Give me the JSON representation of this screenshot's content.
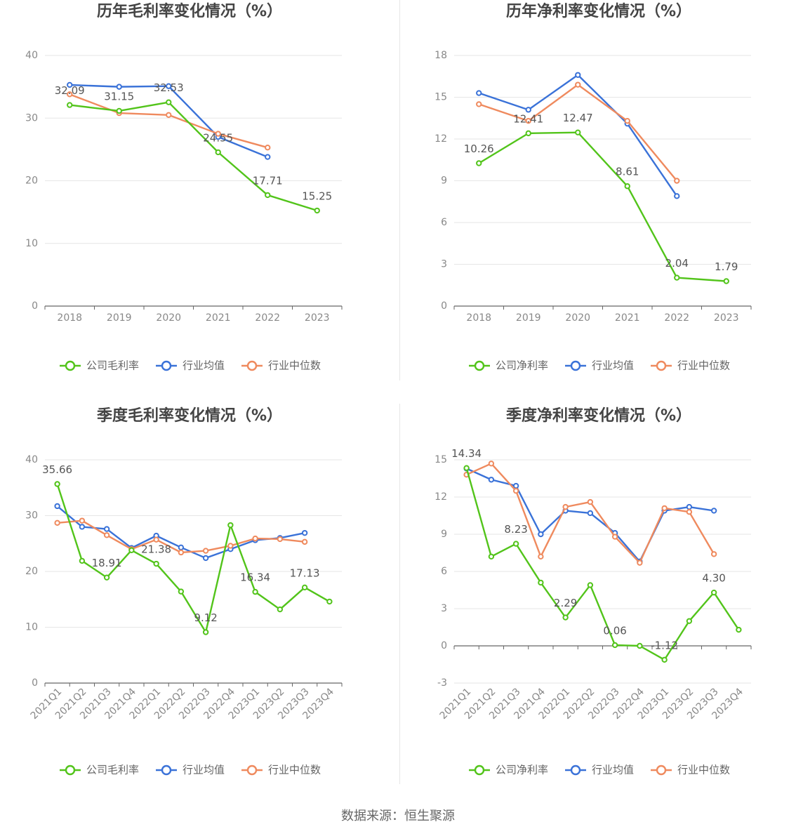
{
  "colors": {
    "company": "#52c41a",
    "average": "#3a72d8",
    "median": "#ef8a5e",
    "axis": "#666666",
    "tick": "#888888",
    "grid": "#e6e6e6",
    "title": "#444444",
    "legend_text": "#666666"
  },
  "footer": "数据来源：恒生聚源",
  "chart_data": [
    {
      "type": "line",
      "title": "历年毛利率变化情况（%）",
      "categories": [
        "2018",
        "2019",
        "2020",
        "2021",
        "2022",
        "2023"
      ],
      "yticks": [
        0,
        10,
        20,
        30,
        40
      ],
      "ylim": [
        0,
        40
      ],
      "grid": true,
      "legend_placement": "bottom",
      "legend": [
        "公司毛利率",
        "行业均值",
        "行业中位数"
      ],
      "series": [
        {
          "name": "公司毛利率",
          "values": [
            32.09,
            31.15,
            32.53,
            24.55,
            17.71,
            15.25
          ],
          "labels": [
            "32.09",
            "31.15",
            "32.53",
            "24.55",
            "17.71",
            "15.25"
          ]
        },
        {
          "name": "行业均值",
          "values": [
            35.3,
            35.0,
            35.1,
            27.0,
            23.8,
            null
          ]
        },
        {
          "name": "行业中位数",
          "values": [
            33.8,
            30.8,
            30.5,
            27.5,
            25.3,
            null
          ]
        }
      ]
    },
    {
      "type": "line",
      "title": "历年净利率变化情况（%）",
      "categories": [
        "2018",
        "2019",
        "2020",
        "2021",
        "2022",
        "2023"
      ],
      "yticks": [
        0,
        3,
        6,
        9,
        12,
        15,
        18
      ],
      "ylim": [
        0,
        18
      ],
      "grid": true,
      "legend_placement": "bottom",
      "legend": [
        "公司净利率",
        "行业均值",
        "行业中位数"
      ],
      "series": [
        {
          "name": "公司净利率",
          "values": [
            10.26,
            12.41,
            12.47,
            8.61,
            2.04,
            1.79
          ],
          "labels": [
            "10.26",
            "12.41",
            "12.47",
            "8.61",
            "2.04",
            "1.79"
          ]
        },
        {
          "name": "行业均值",
          "values": [
            15.3,
            14.1,
            16.6,
            13.1,
            7.9,
            null
          ]
        },
        {
          "name": "行业中位数",
          "values": [
            14.5,
            13.3,
            15.9,
            13.3,
            9.0,
            null
          ]
        }
      ]
    },
    {
      "type": "line",
      "title": "季度毛利率变化情况（%）",
      "categories": [
        "2021Q1",
        "2021Q2",
        "2021Q3",
        "2021Q4",
        "2022Q1",
        "2022Q2",
        "2022Q3",
        "2022Q4",
        "2023Q1",
        "2023Q2",
        "2023Q3",
        "2023Q4"
      ],
      "yticks": [
        0,
        10,
        20,
        30,
        40
      ],
      "ylim": [
        0,
        40
      ],
      "grid": true,
      "legend_placement": "bottom",
      "legend": [
        "公司毛利率",
        "行业均值",
        "行业中位数"
      ],
      "series": [
        {
          "name": "公司毛利率",
          "values": [
            35.66,
            21.9,
            18.91,
            23.8,
            21.38,
            16.4,
            9.12,
            28.3,
            16.34,
            13.2,
            17.13,
            14.6
          ],
          "labels": [
            "35.66",
            "",
            "18.91",
            "",
            "21.38",
            "",
            "9.12",
            "",
            "16.34",
            "",
            "17.13",
            ""
          ]
        },
        {
          "name": "行业均值",
          "values": [
            31.7,
            28.0,
            27.6,
            24.2,
            26.4,
            24.3,
            22.4,
            24.0,
            25.6,
            26.0,
            26.9,
            null
          ]
        },
        {
          "name": "行业中位数",
          "values": [
            28.7,
            29.1,
            26.5,
            24.0,
            25.7,
            23.4,
            23.7,
            24.6,
            25.9,
            25.8,
            25.3,
            null
          ]
        }
      ]
    },
    {
      "type": "line",
      "title": "季度净利率变化情况（%）",
      "categories": [
        "2021Q1",
        "2021Q2",
        "2021Q3",
        "2021Q4",
        "2022Q1",
        "2022Q2",
        "2022Q3",
        "2022Q4",
        "2023Q1",
        "2023Q2",
        "2023Q3",
        "2023Q4"
      ],
      "yticks": [
        -3,
        0,
        3,
        6,
        9,
        12,
        15
      ],
      "ylim": [
        -3,
        15
      ],
      "grid": true,
      "legend_placement": "bottom",
      "legend": [
        "公司净利率",
        "行业均值",
        "行业中位数"
      ],
      "series": [
        {
          "name": "公司净利率",
          "values": [
            14.34,
            7.2,
            8.23,
            5.1,
            2.29,
            4.9,
            0.06,
            0.0,
            -1.12,
            2.0,
            4.3,
            1.3
          ],
          "labels": [
            "14.34",
            "",
            "8.23",
            "",
            "2.29",
            "",
            "0.06",
            "",
            "-1.12",
            "",
            "4.30",
            ""
          ]
        },
        {
          "name": "行业均值",
          "values": [
            14.3,
            13.4,
            12.9,
            9.0,
            10.9,
            10.7,
            9.1,
            6.8,
            10.9,
            11.2,
            10.9,
            null
          ]
        },
        {
          "name": "行业中位数",
          "values": [
            13.8,
            14.7,
            12.5,
            7.2,
            11.2,
            11.6,
            8.8,
            6.7,
            11.1,
            10.8,
            7.4,
            null
          ]
        }
      ]
    }
  ]
}
